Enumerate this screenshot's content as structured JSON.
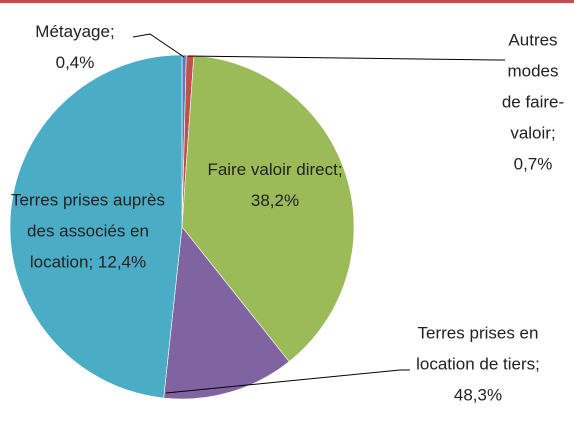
{
  "chart_data": {
    "type": "pie",
    "categories": [
      "Métayage",
      "Autres modes de faire-valoir",
      "Faire valoir direct",
      "Terres prises auprès des associés en location",
      "Terres prises en location de tiers"
    ],
    "values": [
      0.4,
      0.7,
      38.2,
      12.4,
      48.3
    ],
    "value_labels": [
      "0,4%",
      "0,7%",
      "38,2%",
      "12,4%",
      "48,3%"
    ],
    "label_separator": "; ",
    "colors": [
      "#4f81bd",
      "#c0504d",
      "#9bbb59",
      "#8064a2",
      "#4bacc6"
    ]
  }
}
